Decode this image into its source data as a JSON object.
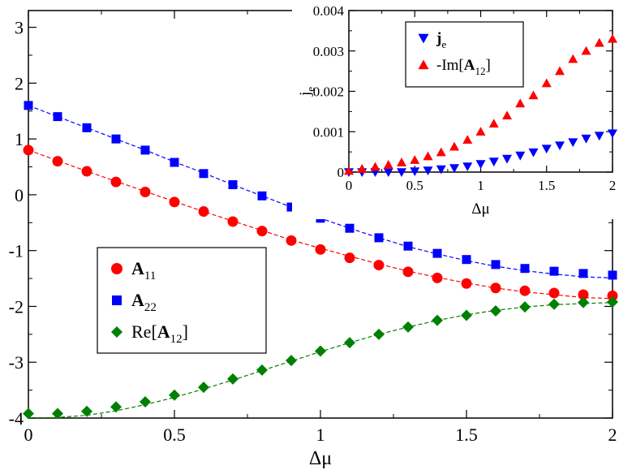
{
  "chart_data": [
    {
      "type": "scatter",
      "xlabel": "Δμ",
      "ylabel": "",
      "xlim": [
        0,
        2
      ],
      "ylim": [
        -4,
        3.3
      ],
      "x_ticks": [
        "0",
        "0.5",
        "1",
        "1.5",
        "2"
      ],
      "y_ticks": [
        "-4",
        "-3",
        "-2",
        "-1",
        "0",
        "1",
        "2",
        "3"
      ],
      "legend": {
        "placement": "middle-left"
      },
      "series": [
        {
          "name": "A11",
          "label_main": "A",
          "label_sub": "11",
          "label_prefix": "",
          "label_suffix": "",
          "marker": "circle",
          "color": "#ff0000",
          "x": [
            0,
            0.1,
            0.2,
            0.3,
            0.4,
            0.5,
            0.6,
            0.7,
            0.8,
            0.9,
            1.0,
            1.1,
            1.2,
            1.3,
            1.4,
            1.5,
            1.6,
            1.7,
            1.8,
            1.9,
            2.0
          ],
          "values": [
            0.8,
            0.6,
            0.42,
            0.23,
            0.05,
            -0.13,
            -0.3,
            -0.48,
            -0.65,
            -0.82,
            -0.98,
            -1.13,
            -1.26,
            -1.38,
            -1.49,
            -1.59,
            -1.67,
            -1.72,
            -1.76,
            -1.79,
            -1.81
          ],
          "fit": [
            0.8,
            0.61,
            0.42,
            0.24,
            0.06,
            -0.12,
            -0.3,
            -0.47,
            -0.64,
            -0.81,
            -0.96,
            -1.1,
            -1.24,
            -1.37,
            -1.48,
            -1.58,
            -1.67,
            -1.74,
            -1.79,
            -1.84,
            -1.86
          ]
        },
        {
          "name": "A22",
          "label_main": "A",
          "label_sub": "22",
          "label_prefix": "",
          "label_suffix": "",
          "marker": "square",
          "color": "#0000ff",
          "x": [
            0,
            0.1,
            0.2,
            0.3,
            0.4,
            0.5,
            0.6,
            0.7,
            0.8,
            0.9,
            1.0,
            1.1,
            1.2,
            1.3,
            1.4,
            1.5,
            1.6,
            1.7,
            1.8,
            1.9,
            2.0
          ],
          "values": [
            1.6,
            1.4,
            1.2,
            1.0,
            0.8,
            0.58,
            0.38,
            0.18,
            -0.02,
            -0.22,
            -0.42,
            -0.6,
            -0.77,
            -0.92,
            -1.05,
            -1.16,
            -1.25,
            -1.32,
            -1.37,
            -1.41,
            -1.44
          ],
          "fit": [
            1.6,
            1.4,
            1.2,
            1.0,
            0.8,
            0.59,
            0.39,
            0.18,
            -0.02,
            -0.22,
            -0.42,
            -0.6,
            -0.77,
            -0.93,
            -1.06,
            -1.18,
            -1.28,
            -1.36,
            -1.42,
            -1.47,
            -1.49
          ]
        },
        {
          "name": "Re[A12]",
          "label_main": "A",
          "label_sub": "12",
          "label_prefix": "Re[",
          "label_suffix": "]",
          "marker": "diamond",
          "color": "#008000",
          "x": [
            0,
            0.1,
            0.2,
            0.3,
            0.4,
            0.5,
            0.6,
            0.7,
            0.8,
            0.9,
            1.0,
            1.1,
            1.2,
            1.3,
            1.4,
            1.5,
            1.6,
            1.7,
            1.8,
            1.9,
            2.0
          ],
          "values": [
            -3.92,
            -3.92,
            -3.88,
            -3.8,
            -3.71,
            -3.59,
            -3.45,
            -3.3,
            -3.14,
            -2.97,
            -2.8,
            -2.65,
            -2.5,
            -2.37,
            -2.25,
            -2.16,
            -2.08,
            -2.01,
            -1.96,
            -1.93,
            -1.92
          ],
          "fit": [
            -4.0,
            -3.99,
            -3.95,
            -3.87,
            -3.76,
            -3.63,
            -3.48,
            -3.32,
            -3.15,
            -2.98,
            -2.81,
            -2.65,
            -2.5,
            -2.37,
            -2.25,
            -2.15,
            -2.07,
            -2.01,
            -1.97,
            -1.95,
            -1.93
          ]
        }
      ]
    },
    {
      "type": "scatter",
      "xlabel": "Δμ",
      "ylabel": "j",
      "ylabel_sub": "e",
      "xlim": [
        0,
        2
      ],
      "ylim": [
        0,
        0.004
      ],
      "x_ticks": [
        "0",
        "0.5",
        "1",
        "1.5",
        "2"
      ],
      "y_ticks": [
        "0",
        "0.001",
        "0.002",
        "0.003",
        "0.004"
      ],
      "legend": {
        "placement": "top-center"
      },
      "series": [
        {
          "name": "je",
          "label_main": "j",
          "label_sub": "e",
          "label_prefix": "",
          "label_suffix": "",
          "marker": "triangle-down",
          "color": "#0000ff",
          "x": [
            0,
            0.1,
            0.2,
            0.3,
            0.4,
            0.5,
            0.6,
            0.7,
            0.8,
            0.9,
            1.0,
            1.1,
            1.2,
            1.3,
            1.4,
            1.5,
            1.6,
            1.7,
            1.8,
            1.9,
            2.0
          ],
          "values": [
            0.0,
            0.0,
            0.0,
            0.0,
            0.0,
            2e-05,
            4e-05,
            7e-05,
            0.0001,
            0.00014,
            0.0002,
            0.00026,
            0.00033,
            0.00041,
            0.00049,
            0.00058,
            0.00066,
            0.00074,
            0.00083,
            0.0009,
            0.00096
          ]
        },
        {
          "name": "-Im[A12]",
          "label_main": "A",
          "label_sub": "12",
          "label_prefix": "-Im[",
          "label_suffix": "]",
          "marker": "triangle-up",
          "color": "#ff0000",
          "x": [
            0,
            0.1,
            0.2,
            0.3,
            0.4,
            0.5,
            0.6,
            0.7,
            0.8,
            0.9,
            1.0,
            1.1,
            1.2,
            1.3,
            1.4,
            1.5,
            1.6,
            1.7,
            1.8,
            1.9,
            2.0
          ],
          "values": [
            3e-05,
            8e-05,
            0.00013,
            0.00018,
            0.00024,
            0.0003,
            0.00039,
            0.00049,
            0.00063,
            0.0008,
            0.001,
            0.0012,
            0.0014,
            0.0017,
            0.0019,
            0.0022,
            0.0025,
            0.0028,
            0.003,
            0.0032,
            0.0033
          ]
        }
      ]
    }
  ]
}
